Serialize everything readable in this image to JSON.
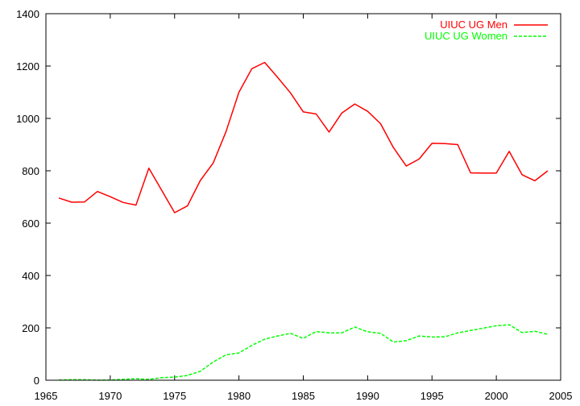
{
  "chart_data": {
    "type": "line",
    "title": "",
    "xlabel": "",
    "ylabel": "",
    "xlim": [
      1965,
      2005
    ],
    "ylim": [
      0,
      1400
    ],
    "xticks": [
      1965,
      1970,
      1975,
      1980,
      1985,
      1990,
      1995,
      2000,
      2005
    ],
    "yticks": [
      0,
      200,
      400,
      600,
      800,
      1000,
      1200,
      1400
    ],
    "grid": false,
    "legend_position": "top-right",
    "series": [
      {
        "name": "UIUC UG Men",
        "color": "#ff0000",
        "line_style": "solid",
        "x": [
          1966,
          1967,
          1968,
          1969,
          1970,
          1971,
          1972,
          1973,
          1974,
          1975,
          1976,
          1977,
          1978,
          1979,
          1980,
          1981,
          1982,
          1983,
          1984,
          1985,
          1986,
          1987,
          1988,
          1989,
          1990,
          1991,
          1992,
          1993,
          1994,
          1995,
          1996,
          1997,
          1998,
          1999,
          2000,
          2001,
          2002,
          2003,
          2004
        ],
        "values": [
          696,
          680,
          681,
          721,
          701,
          679,
          669,
          810,
          725,
          640,
          666,
          763,
          830,
          950,
          1100,
          1190,
          1214,
          1157,
          1098,
          1025,
          1017,
          948,
          1021,
          1055,
          1027,
          980,
          889,
          818,
          845,
          905,
          904,
          900,
          792,
          791,
          791,
          874,
          785,
          762,
          800
        ]
      },
      {
        "name": "UIUC UG Women",
        "color": "#00ff00",
        "line_style": "dashed",
        "x": [
          1966,
          1967,
          1968,
          1969,
          1970,
          1971,
          1972,
          1973,
          1974,
          1975,
          1976,
          1977,
          1978,
          1979,
          1980,
          1981,
          1982,
          1983,
          1984,
          1985,
          1986,
          1987,
          1988,
          1989,
          1990,
          1991,
          1992,
          1993,
          1994,
          1995,
          1996,
          1997,
          1998,
          1999,
          2000,
          2001,
          2002,
          2003,
          2004
        ],
        "values": [
          1,
          2,
          2,
          0,
          1,
          3,
          6,
          3,
          10,
          12,
          18,
          34,
          70,
          97,
          104,
          133,
          157,
          169,
          179,
          160,
          186,
          181,
          181,
          203,
          185,
          179,
          146,
          151,
          169,
          165,
          166,
          181,
          190,
          199,
          208,
          212,
          182,
          187,
          175
        ]
      }
    ]
  }
}
